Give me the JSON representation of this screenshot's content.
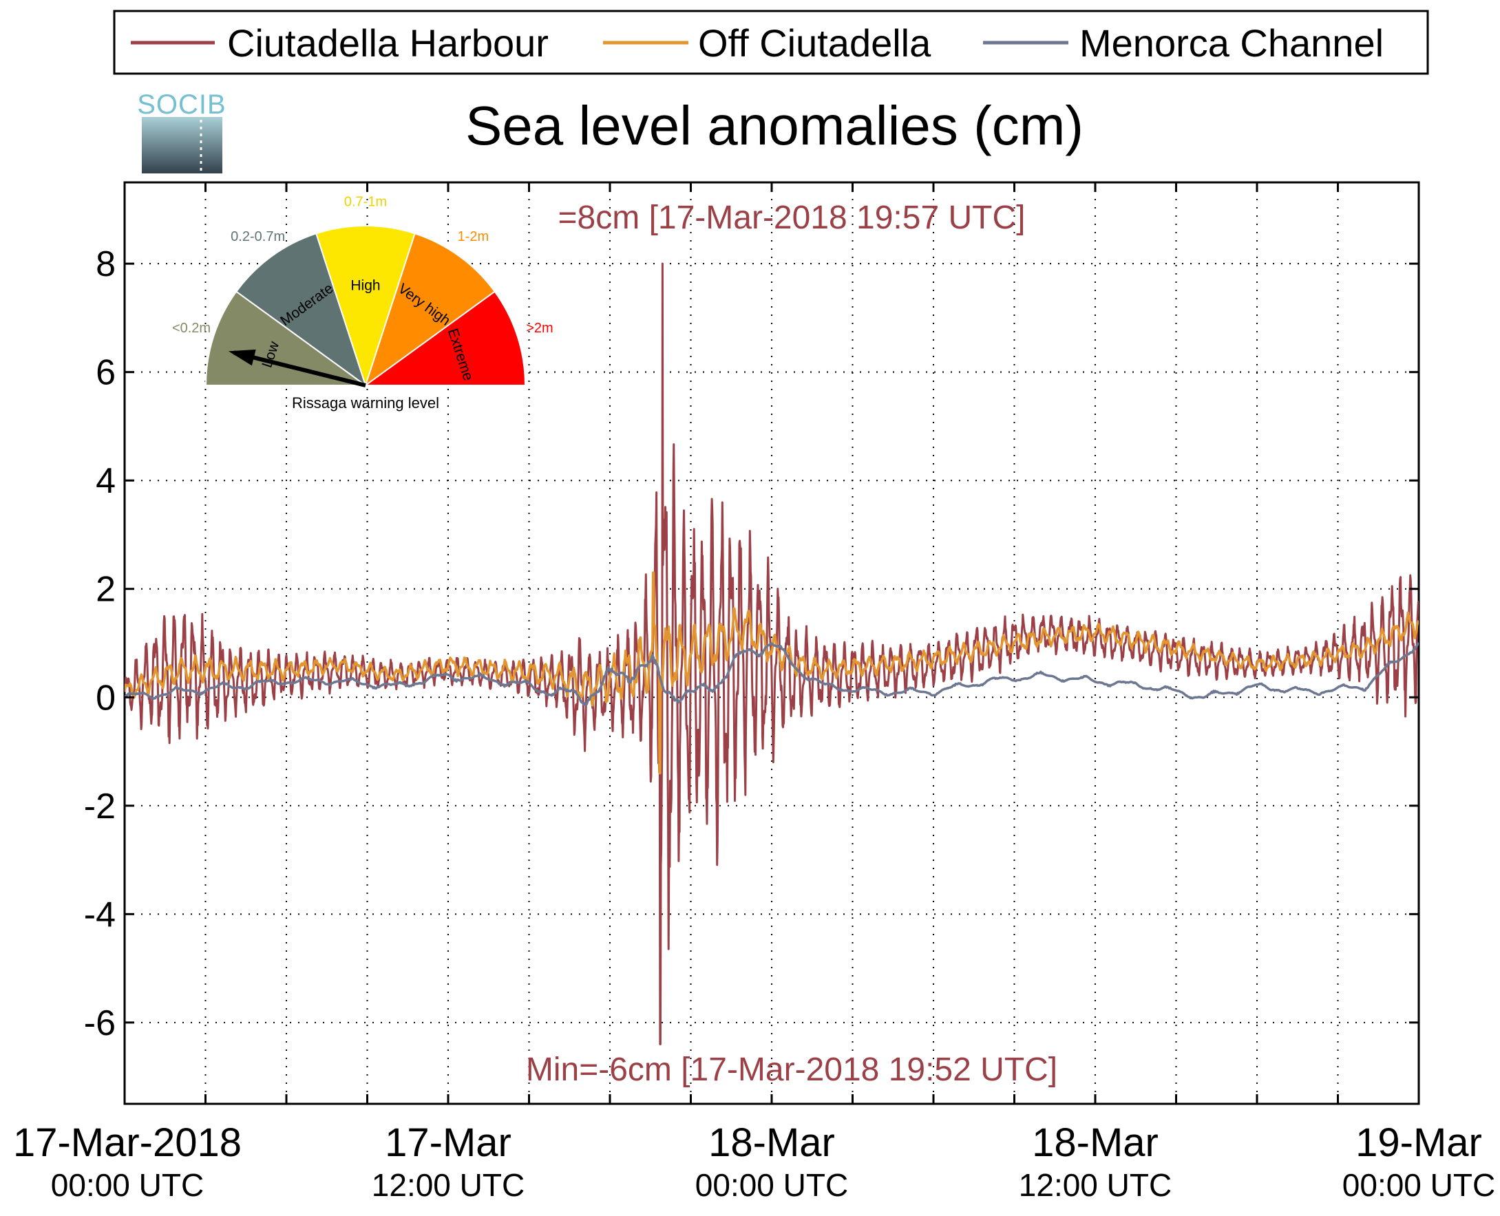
{
  "chart_data": {
    "type": "line",
    "title": "Sea level anomalies (cm)",
    "xlabel": "",
    "ylabel": "",
    "x_range": [
      "17-Mar-2018 00:00 UTC",
      "19-Mar-2018 00:00 UTC"
    ],
    "ylim": [
      -7.5,
      9.5
    ],
    "y_ticks": [
      -6,
      -4,
      -2,
      0,
      2,
      4,
      6,
      8
    ],
    "y_tick_labels": [
      "-6",
      "-4",
      "-2",
      "0",
      "2",
      "4",
      "6",
      "8"
    ],
    "x_ticks": [
      {
        "hour": 0,
        "line1": "17-Mar-2018",
        "line2": "00:00 UTC"
      },
      {
        "hour": 12,
        "line1": "17-Mar",
        "line2": "12:00 UTC"
      },
      {
        "hour": 24,
        "line1": "18-Mar",
        "line2": "00:00 UTC"
      },
      {
        "hour": 36,
        "line1": "18-Mar",
        "line2": "12:00 UTC"
      },
      {
        "hour": 48,
        "line1": "19-Mar",
        "line2": "00:00 UTC"
      }
    ],
    "x_grid_step_hours": 3,
    "grid": true,
    "grid_style": "dotted",
    "legend": {
      "placement": "top",
      "entries": [
        {
          "name": "Ciutadella Harbour",
          "color": "#9b4047"
        },
        {
          "name": "Off Ciutadella",
          "color": "#e3952f"
        },
        {
          "name": "Menorca Channel",
          "color": "#6e7791"
        }
      ]
    },
    "annotations": {
      "max_text": "=8cm [17-Mar-2018 19:57 UTC]",
      "min_text": "Min=-6cm [17-Mar-2018 19:52 UTC]",
      "color": "#9b4047"
    },
    "series": [
      {
        "name": "Ciutadella Harbour",
        "color": "#9b4047",
        "x_unit": "hours since 17-Mar-2018 00:00 UTC",
        "envelope": {
          "x": [
            0,
            1,
            2,
            3,
            4,
            6,
            8,
            10,
            12,
            14,
            16,
            17,
            18,
            19,
            19.5,
            19.9,
            20.2,
            20.6,
            21,
            22,
            23,
            24,
            25,
            26,
            28,
            30,
            32,
            34,
            36,
            38,
            40,
            42,
            44,
            46,
            47,
            48
          ],
          "mid": [
            0.1,
            0.3,
            0.5,
            0.4,
            0.3,
            0.4,
            0.5,
            0.4,
            0.5,
            0.4,
            0.3,
            0.1,
            0.2,
            0.3,
            0.6,
            0.5,
            0.3,
            0.3,
            0.5,
            0.6,
            0.8,
            0.6,
            0.4,
            0.4,
            0.5,
            0.6,
            0.9,
            1.2,
            1.1,
            0.9,
            0.7,
            0.6,
            0.7,
            0.9,
            1.0,
            1.2
          ],
          "amp": [
            0.3,
            1.2,
            1.6,
            1.2,
            0.8,
            0.5,
            0.4,
            0.3,
            0.3,
            0.3,
            0.6,
            1.2,
            0.8,
            1.5,
            2.2,
            5.5,
            6.5,
            3.5,
            3.5,
            4.0,
            3.0,
            2.0,
            1.0,
            0.8,
            0.6,
            0.5,
            0.6,
            0.4,
            0.4,
            0.4,
            0.4,
            0.3,
            0.3,
            0.8,
            1.5,
            1.6
          ]
        },
        "extremes": {
          "max": 8,
          "max_hour": 19.95,
          "min": -6.4,
          "min_hour": 19.87
        }
      },
      {
        "name": "Off Ciutadella",
        "color": "#e3952f",
        "x_unit": "hours since 17-Mar-2018 00:00 UTC",
        "envelope": {
          "x": [
            0,
            2,
            4,
            6,
            8,
            10,
            12,
            14,
            16,
            17,
            18,
            19,
            19.8,
            20.5,
            21,
            22,
            23,
            24,
            25,
            26,
            28,
            30,
            32,
            34,
            36,
            38,
            40,
            42,
            44,
            46,
            48
          ],
          "mid": [
            0.1,
            0.5,
            0.5,
            0.5,
            0.6,
            0.4,
            0.6,
            0.5,
            0.4,
            0.2,
            0.3,
            0.5,
            0.8,
            0.7,
            0.8,
            1.0,
            1.3,
            0.9,
            0.6,
            0.5,
            0.6,
            0.7,
            0.9,
            1.1,
            1.2,
            1.0,
            0.8,
            0.6,
            0.7,
            0.9,
            1.4
          ],
          "amp": [
            0.2,
            0.3,
            0.25,
            0.2,
            0.15,
            0.15,
            0.2,
            0.2,
            0.3,
            0.4,
            0.5,
            0.7,
            0.9,
            0.8,
            0.7,
            0.6,
            0.5,
            0.35,
            0.25,
            0.2,
            0.2,
            0.2,
            0.2,
            0.2,
            0.2,
            0.2,
            0.15,
            0.15,
            0.15,
            0.2,
            0.3
          ]
        },
        "extremes": {
          "max": 2.3,
          "max_hour": 19.6,
          "min": -1.4,
          "min_hour": 19.85
        }
      },
      {
        "name": "Menorca Channel",
        "color": "#6e7791",
        "x_unit": "hours since 17-Mar-2018 00:00 UTC",
        "envelope": {
          "x": [
            0,
            2,
            4,
            6,
            8,
            10,
            12,
            14,
            16,
            17,
            18,
            19,
            19.5,
            20,
            21,
            22,
            23,
            24,
            25,
            26,
            28,
            30,
            32,
            34,
            36,
            38,
            40,
            42,
            44,
            46,
            48
          ],
          "mid": [
            0.0,
            0.1,
            0.2,
            0.3,
            0.3,
            0.2,
            0.4,
            0.3,
            0.1,
            0.0,
            0.3,
            0.6,
            0.5,
            0.2,
            0.0,
            0.3,
            0.8,
            1.0,
            0.5,
            0.2,
            0.1,
            0.1,
            0.3,
            0.4,
            0.3,
            0.2,
            0.0,
            0.2,
            0.1,
            0.2,
            1.0
          ],
          "amp": [
            0.1,
            0.1,
            0.1,
            0.08,
            0.08,
            0.08,
            0.1,
            0.1,
            0.15,
            0.2,
            0.3,
            0.3,
            0.4,
            0.3,
            0.2,
            0.2,
            0.2,
            0.15,
            0.1,
            0.08,
            0.08,
            0.08,
            0.08,
            0.08,
            0.08,
            0.08,
            0.08,
            0.08,
            0.08,
            0.08,
            0.1
          ]
        }
      }
    ]
  },
  "logo": {
    "text": "SOCIB"
  },
  "gauge": {
    "caption": "Rissaga warning level",
    "needle_level": "Low",
    "segments": [
      {
        "name": "Low",
        "range": "<0.2m",
        "color": "#858a66",
        "range_color": "#858a66"
      },
      {
        "name": "Moderate",
        "range": "0.2-0.7m",
        "color": "#5f7373",
        "range_color": "#5f7373"
      },
      {
        "name": "High",
        "range": "0.7-1m",
        "color": "#fde600",
        "range_color": "#f0d200"
      },
      {
        "name": "Very high",
        "range": "1-2m",
        "color": "#ff8b00",
        "range_color": "#ff8b00"
      },
      {
        "name": "Extreme",
        "range": ">2m",
        "color": "#ff0000",
        "range_color": "#ff0000"
      }
    ]
  }
}
